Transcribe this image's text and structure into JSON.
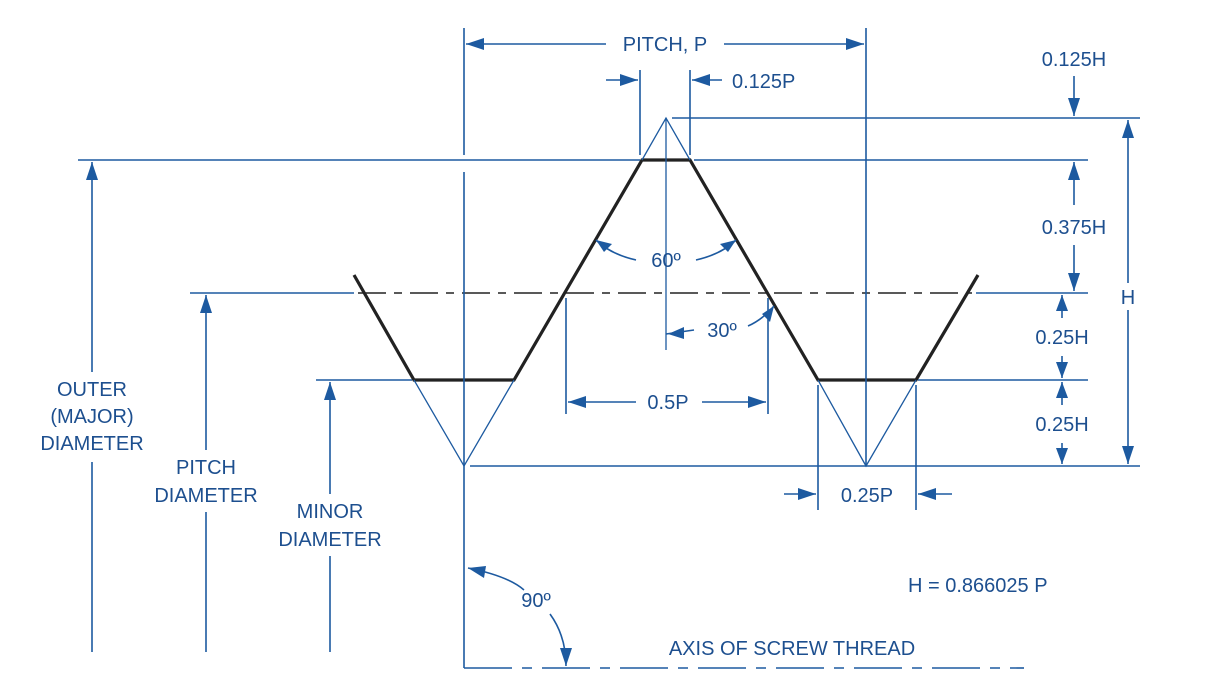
{
  "labels": {
    "pitch": "PITCH, P",
    "p0125": "0.125P",
    "h0125": "0.125H",
    "h0375": "0.375H",
    "h": "H",
    "h025_upper": "0.25H",
    "h025_lower": "0.25H",
    "angle60": "60º",
    "angle30": "30º",
    "p05": "0.5P",
    "p025": "0.25P",
    "outer_line1": "OUTER",
    "outer_line2": "(MAJOR)",
    "outer_line3": "DIAMETER",
    "pitchdia_line1": "PITCH",
    "pitchdia_line2": "DIAMETER",
    "minor_line1": "MINOR",
    "minor_line2": "DIAMETER",
    "angle90": "90º",
    "formula": "H = 0.866025  P",
    "axis": "AXIS OF SCREW THREAD"
  },
  "colors": {
    "dimension": "#1d5aa0",
    "profile": "#222222",
    "text": "#1d4f8f"
  }
}
